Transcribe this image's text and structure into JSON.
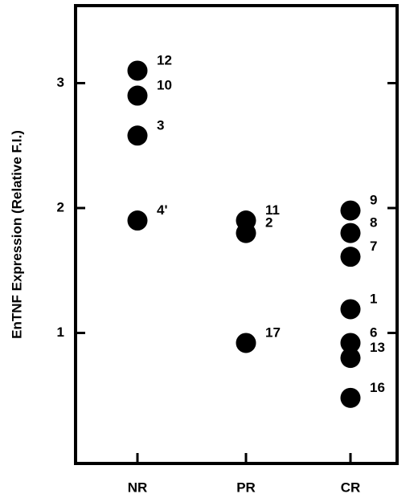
{
  "chart_data": {
    "type": "scatter",
    "title": "",
    "xlabel": "",
    "ylabel": "EnTNF Expression (Relative F.I.)",
    "categories": [
      "NR",
      "PR",
      "CR"
    ],
    "ylim": [
      0,
      3.65
    ],
    "yticks": [
      "1",
      "2",
      "3"
    ],
    "grid": false,
    "points": [
      {
        "category": "NR",
        "y": 3.1,
        "label": "12"
      },
      {
        "category": "NR",
        "y": 2.9,
        "label": "10"
      },
      {
        "category": "NR",
        "y": 2.58,
        "label": "3"
      },
      {
        "category": "NR",
        "y": 1.9,
        "label": "4'"
      },
      {
        "category": "PR",
        "y": 1.9,
        "label": "11"
      },
      {
        "category": "PR",
        "y": 1.8,
        "label": "2"
      },
      {
        "category": "PR",
        "y": 0.92,
        "label": "17"
      },
      {
        "category": "CR",
        "y": 1.98,
        "label": "9"
      },
      {
        "category": "CR",
        "y": 1.8,
        "label": "8"
      },
      {
        "category": "CR",
        "y": 1.61,
        "label": "7"
      },
      {
        "category": "CR",
        "y": 1.19,
        "label": "1"
      },
      {
        "category": "CR",
        "y": 0.92,
        "label": "6"
      },
      {
        "category": "CR",
        "y": 0.8,
        "label": "13"
      },
      {
        "category": "CR",
        "y": 0.48,
        "label": "16"
      }
    ]
  }
}
